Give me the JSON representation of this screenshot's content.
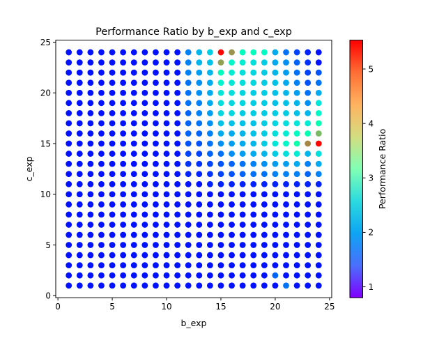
{
  "chart_data": {
    "type": "scatter",
    "title": "Performance Ratio by b_exp and c_exp",
    "xlabel": "b_exp",
    "ylabel": "c_exp",
    "xlim": [
      -0.2,
      25.2
    ],
    "ylim": [
      -0.2,
      25.2
    ],
    "xticks": [
      0,
      5,
      10,
      15,
      20,
      25
    ],
    "yticks": [
      0,
      5,
      10,
      15,
      20,
      25
    ],
    "grid": false,
    "marker": "circle",
    "x_values": [
      1,
      2,
      3,
      4,
      5,
      6,
      7,
      8,
      9,
      10,
      11,
      12,
      13,
      14,
      15,
      16,
      17,
      18,
      19,
      20,
      21,
      22,
      23,
      24
    ],
    "y_values": [
      24,
      23,
      22,
      21,
      20,
      19,
      18,
      17,
      16,
      15,
      14,
      13,
      12,
      11,
      10,
      9,
      8,
      7,
      6,
      5,
      4,
      3,
      2,
      1
    ],
    "value_grid_note": "rows follow y_values order; columns follow x_values order",
    "values": [
      [
        0.9,
        0.9,
        0.9,
        0.9,
        0.9,
        0.9,
        0.9,
        0.9,
        0.9,
        0.9,
        0.9,
        1.6,
        2.0,
        2.2,
        5.5,
        4.6,
        3.0,
        3.0,
        2.9,
        1.9,
        1.5,
        1.2,
        1.0,
        0.9
      ],
      [
        0.9,
        0.9,
        0.9,
        0.9,
        0.9,
        0.9,
        0.9,
        0.9,
        0.9,
        0.9,
        0.9,
        1.6,
        2.0,
        2.1,
        4.5,
        2.8,
        2.6,
        2.4,
        2.2,
        1.9,
        1.7,
        1.4,
        1.1,
        0.9
      ],
      [
        0.9,
        0.9,
        0.9,
        0.9,
        0.9,
        0.9,
        0.9,
        0.9,
        0.9,
        0.9,
        0.9,
        1.6,
        1.8,
        2.0,
        3.0,
        2.6,
        2.4,
        2.3,
        2.2,
        2.0,
        1.8,
        1.5,
        1.2,
        1.3
      ],
      [
        0.9,
        0.9,
        0.9,
        0.9,
        0.9,
        0.9,
        0.9,
        0.9,
        0.9,
        0.9,
        0.9,
        1.5,
        1.7,
        1.9,
        2.7,
        2.5,
        2.4,
        2.3,
        2.2,
        2.1,
        1.9,
        1.6,
        1.3,
        1.5
      ],
      [
        0.9,
        0.9,
        0.9,
        0.9,
        0.9,
        0.9,
        0.9,
        0.9,
        0.9,
        0.9,
        0.9,
        1.5,
        1.7,
        1.9,
        2.5,
        2.4,
        2.3,
        2.2,
        2.2,
        2.1,
        2.0,
        1.8,
        1.5,
        1.9
      ],
      [
        0.9,
        0.9,
        0.9,
        0.9,
        0.9,
        0.9,
        0.9,
        0.9,
        0.9,
        0.9,
        0.9,
        1.5,
        1.6,
        1.9,
        2.4,
        2.3,
        2.3,
        2.2,
        2.2,
        2.1,
        2.1,
        2.0,
        1.7,
        2.5
      ],
      [
        0.9,
        0.9,
        0.9,
        0.9,
        0.9,
        0.9,
        0.9,
        0.9,
        0.9,
        0.9,
        0.9,
        1.4,
        1.6,
        1.8,
        2.3,
        2.3,
        2.2,
        2.2,
        2.2,
        2.2,
        2.2,
        2.1,
        2.0,
        2.8
      ],
      [
        0.9,
        0.9,
        0.9,
        0.9,
        0.9,
        0.9,
        0.9,
        0.9,
        0.9,
        0.9,
        0.9,
        1.4,
        1.5,
        1.7,
        2.1,
        2.1,
        2.1,
        2.1,
        2.2,
        2.3,
        2.4,
        2.5,
        2.6,
        3.2
      ],
      [
        0.9,
        0.9,
        0.9,
        0.9,
        0.9,
        0.9,
        0.9,
        0.9,
        0.9,
        0.9,
        0.9,
        1.4,
        1.4,
        1.6,
        1.9,
        1.9,
        2.0,
        2.1,
        2.2,
        2.4,
        2.6,
        2.9,
        3.2,
        4.3
      ],
      [
        0.9,
        0.9,
        0.9,
        0.9,
        0.9,
        0.9,
        0.9,
        0.9,
        0.9,
        0.9,
        0.9,
        1.3,
        1.3,
        1.5,
        1.7,
        1.8,
        1.9,
        2.0,
        2.2,
        2.5,
        2.8,
        3.3,
        4.7,
        5.5
      ],
      [
        0.9,
        0.9,
        0.9,
        0.9,
        0.9,
        0.9,
        0.9,
        0.9,
        0.9,
        0.9,
        0.9,
        1.2,
        1.2,
        1.4,
        1.5,
        1.7,
        1.8,
        1.9,
        2.0,
        2.2,
        2.4,
        2.6,
        2.0,
        2.4
      ],
      [
        0.9,
        0.9,
        0.9,
        0.9,
        0.9,
        0.9,
        0.9,
        0.9,
        0.9,
        0.9,
        0.9,
        1.1,
        1.1,
        1.2,
        1.3,
        1.4,
        1.5,
        1.6,
        1.7,
        1.8,
        1.8,
        1.9,
        1.6,
        1.9
      ],
      [
        0.9,
        0.9,
        0.9,
        0.9,
        0.9,
        0.9,
        0.9,
        0.9,
        0.9,
        0.9,
        0.9,
        1.0,
        1.0,
        1.1,
        1.2,
        1.3,
        1.4,
        1.5,
        1.5,
        1.6,
        1.6,
        1.6,
        1.4,
        1.6
      ],
      [
        0.9,
        0.9,
        0.9,
        0.9,
        0.9,
        0.9,
        0.9,
        0.9,
        0.9,
        0.9,
        0.9,
        0.9,
        0.9,
        1.0,
        1.0,
        1.0,
        1.0,
        1.0,
        1.0,
        1.0,
        1.0,
        1.0,
        1.0,
        1.0
      ],
      [
        0.9,
        0.9,
        0.9,
        0.9,
        0.9,
        0.9,
        0.9,
        0.9,
        0.9,
        0.9,
        0.9,
        0.9,
        0.9,
        0.9,
        0.9,
        0.9,
        0.9,
        0.9,
        0.9,
        0.9,
        0.9,
        0.9,
        0.9,
        0.9
      ],
      [
        0.9,
        0.9,
        0.9,
        0.9,
        0.9,
        0.9,
        0.9,
        0.9,
        0.9,
        0.9,
        0.9,
        0.9,
        0.9,
        0.9,
        0.9,
        0.9,
        0.9,
        0.9,
        0.9,
        0.9,
        0.9,
        0.9,
        0.9,
        0.9
      ],
      [
        0.9,
        0.9,
        0.9,
        0.9,
        0.9,
        0.9,
        0.9,
        0.9,
        0.9,
        0.9,
        0.9,
        0.9,
        0.9,
        0.9,
        0.9,
        0.9,
        0.9,
        0.9,
        0.9,
        0.9,
        0.9,
        0.9,
        0.9,
        0.9
      ],
      [
        0.9,
        0.9,
        0.9,
        0.9,
        0.9,
        0.9,
        0.9,
        0.9,
        0.9,
        0.9,
        0.9,
        0.9,
        0.9,
        0.9,
        0.9,
        0.9,
        0.9,
        0.9,
        0.9,
        0.9,
        0.9,
        0.9,
        0.9,
        0.9
      ],
      [
        0.9,
        0.9,
        0.9,
        0.9,
        0.9,
        0.9,
        0.9,
        0.9,
        0.9,
        0.9,
        0.9,
        0.9,
        0.9,
        0.9,
        0.9,
        0.9,
        0.9,
        0.9,
        0.9,
        0.9,
        0.9,
        0.9,
        0.9,
        0.9
      ],
      [
        0.9,
        0.9,
        0.9,
        0.9,
        0.9,
        0.9,
        0.9,
        0.9,
        0.9,
        0.9,
        0.9,
        0.9,
        0.9,
        0.9,
        0.9,
        0.9,
        0.9,
        0.9,
        0.9,
        0.9,
        0.9,
        0.9,
        0.9,
        0.9
      ],
      [
        0.9,
        0.9,
        0.9,
        0.9,
        0.9,
        0.9,
        0.9,
        0.9,
        0.9,
        0.9,
        0.9,
        0.9,
        0.9,
        0.9,
        0.9,
        0.9,
        0.9,
        0.9,
        0.9,
        0.9,
        0.9,
        0.9,
        0.9,
        0.9
      ],
      [
        0.9,
        0.9,
        0.9,
        0.9,
        0.9,
        0.9,
        0.9,
        0.9,
        0.9,
        0.9,
        0.9,
        0.9,
        0.9,
        0.9,
        0.9,
        0.9,
        0.9,
        0.9,
        0.9,
        0.9,
        0.9,
        0.9,
        0.9,
        0.9
      ],
      [
        0.9,
        0.9,
        0.9,
        0.9,
        0.9,
        0.9,
        0.9,
        0.9,
        0.9,
        0.9,
        0.9,
        0.9,
        0.9,
        0.9,
        0.9,
        0.9,
        0.9,
        0.9,
        0.9,
        1.4,
        0.9,
        0.9,
        0.9,
        0.9
      ],
      [
        0.9,
        0.9,
        0.9,
        0.9,
        0.9,
        0.9,
        0.9,
        0.9,
        0.9,
        0.9,
        0.9,
        0.9,
        0.9,
        0.9,
        0.9,
        0.9,
        0.9,
        0.9,
        0.9,
        0.9,
        1.5,
        0.9,
        0.9,
        0.9
      ]
    ],
    "colorbar": {
      "label": "Performance Ratio",
      "colormap": "rainbow",
      "vmin": 0.8,
      "vmax": 5.53,
      "ticks": [
        1,
        2,
        3,
        4,
        5
      ]
    }
  }
}
